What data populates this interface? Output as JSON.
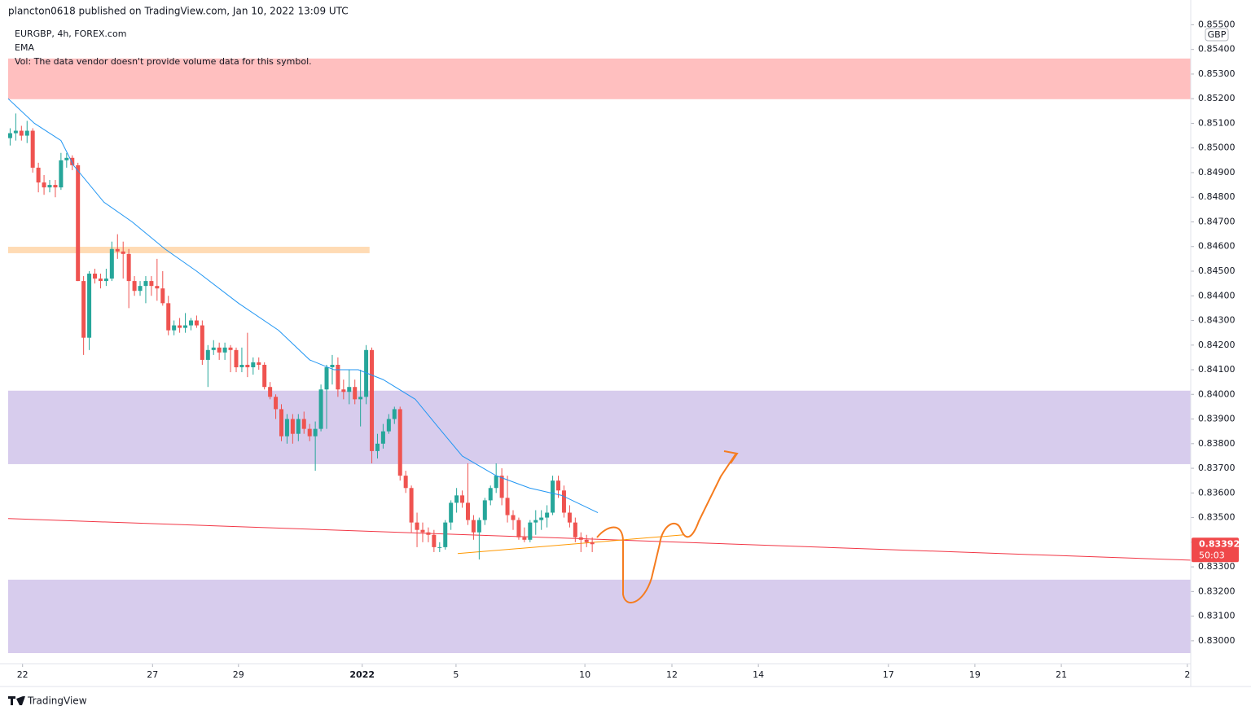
{
  "header": "plancton0618 published on TradingView.com, Jan 10, 2022 13:09 UTC",
  "footer": "TradingView",
  "chart_data": {
    "type": "candlestick",
    "symbol": "EURGBP, 4h, FOREX.com",
    "note": "Vol: The data vendor doesn't provide volume data for this symbol.",
    "currency": "GBP",
    "up_color": "#26a69a",
    "down_color": "#ef5350",
    "xlim": [
      -0.35,
      208.9
    ],
    "ylim": [
      0.82907,
      0.85508
    ],
    "xticks": [
      {
        "value": 2.2,
        "label": "22"
      },
      {
        "value": 25.2,
        "label": "27"
      },
      {
        "value": 40.4,
        "label": "29"
      },
      {
        "value": 62.3,
        "label": "2022"
      },
      {
        "value": 78.9,
        "label": "5"
      },
      {
        "value": 101.7,
        "label": "10"
      },
      {
        "value": 117.1,
        "label": "12"
      },
      {
        "value": 132.4,
        "label": "14"
      },
      {
        "value": 155.4,
        "label": "17"
      },
      {
        "value": 170.7,
        "label": "19"
      },
      {
        "value": 186.0,
        "label": "21"
      },
      {
        "value": 208.3,
        "label": "2"
      }
    ],
    "yticks": [
      {
        "value": 0.83,
        "label": "0.83000"
      },
      {
        "value": 0.831,
        "label": "0.83100"
      },
      {
        "value": 0.832,
        "label": "0.83200"
      },
      {
        "value": 0.833,
        "label": "0.83300"
      },
      {
        "value": 0.834,
        "label": "0.83400"
      },
      {
        "value": 0.835,
        "label": "0.83500"
      },
      {
        "value": 0.836,
        "label": "0.83600"
      },
      {
        "value": 0.837,
        "label": "0.83700"
      },
      {
        "value": 0.838,
        "label": "0.83800"
      },
      {
        "value": 0.839,
        "label": "0.83900"
      },
      {
        "value": 0.84,
        "label": "0.84000"
      },
      {
        "value": 0.841,
        "label": "0.84100"
      },
      {
        "value": 0.842,
        "label": "0.84200"
      },
      {
        "value": 0.843,
        "label": "0.84300"
      },
      {
        "value": 0.844,
        "label": "0.84400"
      },
      {
        "value": 0.845,
        "label": "0.84500"
      },
      {
        "value": 0.846,
        "label": "0.84600"
      },
      {
        "value": 0.847,
        "label": "0.84700"
      },
      {
        "value": 0.848,
        "label": "0.84800"
      },
      {
        "value": 0.849,
        "label": "0.84900"
      },
      {
        "value": 0.85,
        "label": "0.85000"
      },
      {
        "value": 0.851,
        "label": "0.85100"
      },
      {
        "value": 0.852,
        "label": "0.85200"
      },
      {
        "value": 0.853,
        "label": "0.85300"
      },
      {
        "value": 0.854,
        "label": "0.85400"
      },
      {
        "value": 0.855,
        "label": "0.85500"
      }
    ],
    "ohlc": [
      [
        0.8504,
        0.8508,
        0.8501,
        0.8506
      ],
      [
        0.8506,
        0.8514,
        0.8503,
        0.8507
      ],
      [
        0.8507,
        0.8509,
        0.8503,
        0.8505
      ],
      [
        0.8505,
        0.8511,
        0.8502,
        0.8507
      ],
      [
        0.8507,
        0.8508,
        0.849,
        0.8492
      ],
      [
        0.8492,
        0.8494,
        0.8482,
        0.8486
      ],
      [
        0.8486,
        0.8489,
        0.8481,
        0.8484
      ],
      [
        0.8484,
        0.8487,
        0.8482,
        0.8485
      ],
      [
        0.8485,
        0.8487,
        0.848,
        0.8484
      ],
      [
        0.8484,
        0.8498,
        0.8483,
        0.8495
      ],
      [
        0.8495,
        0.8498,
        0.8492,
        0.8496
      ],
      [
        0.8496,
        0.8497,
        0.8491,
        0.8493
      ],
      [
        0.8493,
        0.8494,
        0.8446,
        0.8446
      ],
      [
        0.8446,
        0.8448,
        0.8416,
        0.8423
      ],
      [
        0.8423,
        0.845,
        0.8418,
        0.8449
      ],
      [
        0.8449,
        0.8451,
        0.8445,
        0.8447
      ],
      [
        0.8447,
        0.8449,
        0.8443,
        0.8446
      ],
      [
        0.8446,
        0.8451,
        0.8444,
        0.8447
      ],
      [
        0.8447,
        0.8462,
        0.8446,
        0.8459
      ],
      [
        0.8459,
        0.8465,
        0.8455,
        0.8458
      ],
      [
        0.8458,
        0.8462,
        0.8447,
        0.8457
      ],
      [
        0.8457,
        0.8459,
        0.8435,
        0.8446
      ],
      [
        0.8446,
        0.8448,
        0.844,
        0.8442
      ],
      [
        0.8442,
        0.8446,
        0.844,
        0.8444
      ],
      [
        0.8444,
        0.8448,
        0.8437,
        0.8446
      ],
      [
        0.8446,
        0.8448,
        0.844,
        0.8444
      ],
      [
        0.8444,
        0.8455,
        0.8438,
        0.8443
      ],
      [
        0.8443,
        0.845,
        0.8436,
        0.8437
      ],
      [
        0.8437,
        0.844,
        0.8424,
        0.8426
      ],
      [
        0.8426,
        0.843,
        0.8424,
        0.8428
      ],
      [
        0.8428,
        0.8431,
        0.8425,
        0.8427
      ],
      [
        0.8427,
        0.8433,
        0.8425,
        0.8428
      ],
      [
        0.8428,
        0.8431,
        0.8426,
        0.843
      ],
      [
        0.843,
        0.8432,
        0.8427,
        0.8428
      ],
      [
        0.8428,
        0.843,
        0.8412,
        0.8414
      ],
      [
        0.8414,
        0.842,
        0.8403,
        0.8418
      ],
      [
        0.8418,
        0.8422,
        0.8416,
        0.8419
      ],
      [
        0.8419,
        0.8421,
        0.8414,
        0.8417
      ],
      [
        0.8417,
        0.8421,
        0.8414,
        0.8419
      ],
      [
        0.8419,
        0.842,
        0.8409,
        0.8418
      ],
      [
        0.8418,
        0.8419,
        0.8409,
        0.8411
      ],
      [
        0.8411,
        0.8419,
        0.8409,
        0.8412
      ],
      [
        0.8412,
        0.8425,
        0.8407,
        0.8411
      ],
      [
        0.8411,
        0.8415,
        0.8408,
        0.8413
      ],
      [
        0.8413,
        0.8415,
        0.841,
        0.8412
      ],
      [
        0.8412,
        0.8413,
        0.8402,
        0.8403
      ],
      [
        0.8403,
        0.8405,
        0.8398,
        0.8399
      ],
      [
        0.8399,
        0.84,
        0.839,
        0.8394
      ],
      [
        0.8394,
        0.8396,
        0.8381,
        0.8383
      ],
      [
        0.8383,
        0.8392,
        0.838,
        0.839
      ],
      [
        0.839,
        0.8392,
        0.838,
        0.8384
      ],
      [
        0.8384,
        0.8392,
        0.8381,
        0.839
      ],
      [
        0.839,
        0.8393,
        0.8384,
        0.8386
      ],
      [
        0.8386,
        0.8388,
        0.8381,
        0.8383
      ],
      [
        0.8383,
        0.8389,
        0.8369,
        0.8386
      ],
      [
        0.8386,
        0.8404,
        0.8385,
        0.8402
      ],
      [
        0.8402,
        0.8412,
        0.8386,
        0.8411
      ],
      [
        0.8411,
        0.8416,
        0.8404,
        0.8412
      ],
      [
        0.8412,
        0.8415,
        0.8399,
        0.8402
      ],
      [
        0.8402,
        0.8406,
        0.8398,
        0.8401
      ],
      [
        0.8401,
        0.841,
        0.8396,
        0.8403
      ],
      [
        0.8403,
        0.8406,
        0.8396,
        0.8398
      ],
      [
        0.8398,
        0.841,
        0.8387,
        0.8399
      ],
      [
        0.8399,
        0.842,
        0.8396,
        0.8418
      ],
      [
        0.8418,
        0.8419,
        0.8372,
        0.8377
      ],
      [
        0.8377,
        0.8384,
        0.8374,
        0.838
      ],
      [
        0.838,
        0.8388,
        0.8378,
        0.8385
      ],
      [
        0.8385,
        0.8392,
        0.8384,
        0.839
      ],
      [
        0.839,
        0.8395,
        0.8388,
        0.8394
      ],
      [
        0.8394,
        0.8395,
        0.8365,
        0.8367
      ],
      [
        0.8367,
        0.8369,
        0.836,
        0.8362
      ],
      [
        0.8362,
        0.8363,
        0.8344,
        0.8348
      ],
      [
        0.8348,
        0.8352,
        0.8338,
        0.8345
      ],
      [
        0.8345,
        0.8348,
        0.834,
        0.8344
      ],
      [
        0.8344,
        0.8346,
        0.834,
        0.8343
      ],
      [
        0.8343,
        0.8345,
        0.8336,
        0.8338
      ],
      [
        0.8338,
        0.834,
        0.8336,
        0.8338
      ],
      [
        0.8338,
        0.8349,
        0.8337,
        0.8348
      ],
      [
        0.8348,
        0.8357,
        0.8345,
        0.8356
      ],
      [
        0.8356,
        0.8362,
        0.8352,
        0.8359
      ],
      [
        0.8359,
        0.8361,
        0.8354,
        0.8356
      ],
      [
        0.8356,
        0.8372,
        0.8347,
        0.8349
      ],
      [
        0.8349,
        0.8351,
        0.8341,
        0.8344
      ],
      [
        0.8344,
        0.835,
        0.8333,
        0.8349
      ],
      [
        0.8349,
        0.8358,
        0.8347,
        0.8357
      ],
      [
        0.8357,
        0.8363,
        0.8355,
        0.8362
      ],
      [
        0.8362,
        0.8372,
        0.836,
        0.8367
      ],
      [
        0.8367,
        0.837,
        0.8355,
        0.8358
      ],
      [
        0.8358,
        0.8367,
        0.8348,
        0.8351
      ],
      [
        0.8351,
        0.8353,
        0.8345,
        0.8349
      ],
      [
        0.8349,
        0.835,
        0.8341,
        0.8342
      ],
      [
        0.8342,
        0.8346,
        0.834,
        0.8341
      ],
      [
        0.8341,
        0.8349,
        0.834,
        0.8348
      ],
      [
        0.8348,
        0.8353,
        0.8343,
        0.8349
      ],
      [
        0.8349,
        0.8353,
        0.8345,
        0.835
      ],
      [
        0.835,
        0.8355,
        0.8346,
        0.8352
      ],
      [
        0.8352,
        0.8367,
        0.8351,
        0.8365
      ],
      [
        0.8365,
        0.8367,
        0.8358,
        0.8361
      ],
      [
        0.8361,
        0.8363,
        0.835,
        0.8352
      ],
      [
        0.8352,
        0.8355,
        0.8346,
        0.8348
      ],
      [
        0.8348,
        0.835,
        0.834,
        0.8342
      ],
      [
        0.8342,
        0.8344,
        0.8336,
        0.8341
      ],
      [
        0.8341,
        0.8343,
        0.8338,
        0.834
      ],
      [
        0.834,
        0.8342,
        0.8336,
        0.83392
      ]
    ],
    "ema": {
      "name": "EMA",
      "color": "#2196f3",
      "x": [
        -0.35,
        4.3,
        9,
        11.2,
        16.6,
        21.6,
        27.4,
        33,
        40.4,
        47.5,
        53,
        57.3,
        61.6,
        66,
        71.7,
        76,
        80,
        86,
        91.9,
        97.6,
        104
      ],
      "values": [
        0.852,
        0.851,
        0.8503,
        0.8493,
        0.8478,
        0.847,
        0.8459,
        0.845,
        0.8437,
        0.8426,
        0.8414,
        0.841,
        0.841,
        0.8406,
        0.8398,
        0.8386,
        0.8375,
        0.8367,
        0.8362,
        0.8359,
        0.8352
      ]
    },
    "zones": [
      {
        "y": [
          0.85198,
          0.85363
        ],
        "color": "#ffbcbc"
      },
      {
        "y": [
          0.84573,
          0.84599
        ],
        "x": [
          -0.35,
          63.6
        ],
        "color": "#ffd9b0"
      },
      {
        "y": [
          0.83717,
          0.84015
        ],
        "color": "#d5c9ec"
      },
      {
        "y": [
          0.8295,
          0.83248
        ],
        "color": "#d5c9ec"
      }
    ],
    "lines": [
      {
        "x": [
          -0.35,
          208.9
        ],
        "y": [
          0.83496,
          0.83327
        ],
        "color": "#f23645"
      },
      {
        "x": [
          79.2,
          119.2
        ],
        "y": [
          0.83354,
          0.8343
        ],
        "color": "#ff9800"
      }
    ],
    "last_price": {
      "value": 0.83392,
      "label": "0.83392",
      "countdown": "50:03",
      "color": "#f0484a"
    }
  }
}
